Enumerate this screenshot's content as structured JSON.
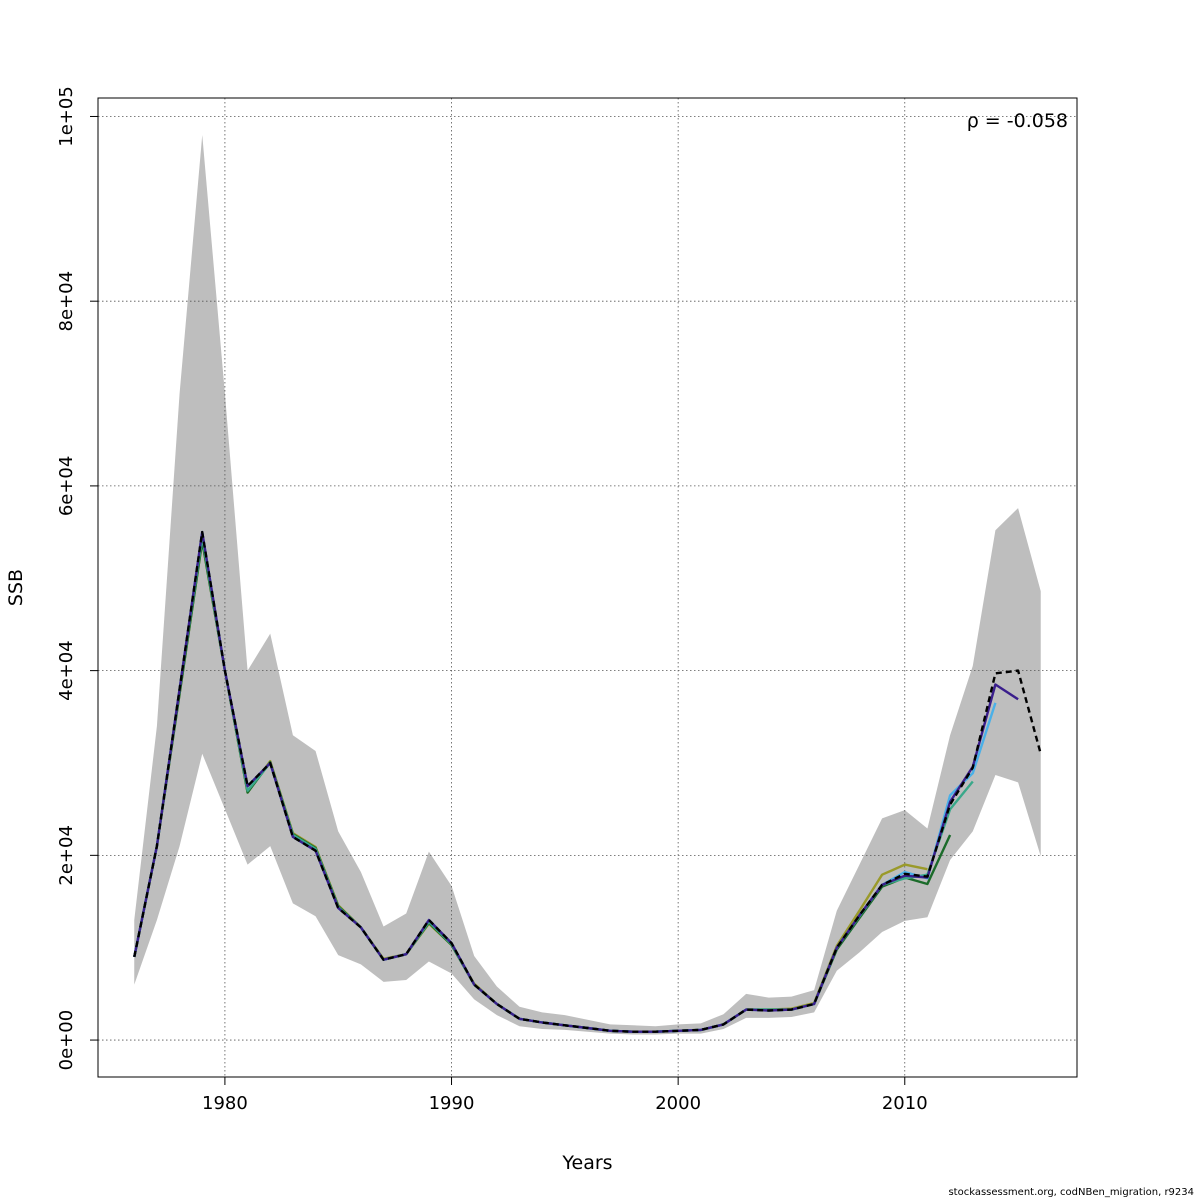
{
  "chart_data": {
    "type": "line",
    "title": "",
    "xlabel": "Years",
    "ylabel": "SSB",
    "xlim": [
      1974.4,
      2017.6
    ],
    "ylim": [
      -4000,
      102000
    ],
    "x_ticks": [
      1980,
      1990,
      2000,
      2010
    ],
    "x_tick_labels": [
      "1980",
      "1990",
      "2000",
      "2010"
    ],
    "y_ticks": [
      0,
      20000,
      40000,
      60000,
      80000,
      100000
    ],
    "y_tick_labels": [
      "0e+00",
      "2e+04",
      "4e+04",
      "6e+04",
      "8e+04",
      "1e+05"
    ],
    "grid": true,
    "annotation": "ρ = -0.058",
    "annotation_position": "top-right",
    "confidence_band": {
      "x": [
        1976,
        1977,
        1978,
        1979,
        1980,
        1981,
        1982,
        1983,
        1984,
        1985,
        1986,
        1987,
        1988,
        1989,
        1990,
        1991,
        1992,
        1993,
        1994,
        1995,
        1996,
        1997,
        1998,
        1999,
        2000,
        2001,
        2002,
        2003,
        2004,
        2005,
        2006,
        2007,
        2008,
        2009,
        2010,
        2011,
        2012,
        2013,
        2014,
        2015,
        2016
      ],
      "lower": [
        6000,
        13000,
        21000,
        31000,
        25000,
        19000,
        21000,
        14800,
        13400,
        9200,
        8200,
        6300,
        6500,
        8500,
        7200,
        4400,
        2700,
        1500,
        1200,
        1100,
        900,
        700,
        600,
        600,
        700,
        700,
        1200,
        2400,
        2400,
        2500,
        3000,
        7500,
        9500,
        11700,
        12900,
        13300,
        19500,
        22600,
        28700,
        27900,
        19900
      ],
      "upper": [
        13000,
        34000,
        70000,
        98000,
        70000,
        40000,
        44000,
        33000,
        31300,
        22600,
        18200,
        12300,
        13700,
        20400,
        16700,
        9100,
        5800,
        3600,
        3000,
        2700,
        2200,
        1700,
        1600,
        1500,
        1700,
        1800,
        2800,
        5000,
        4600,
        4700,
        5400,
        14000,
        19000,
        24000,
        24900,
        22900,
        33000,
        40500,
        55200,
        57600,
        48600
      ]
    },
    "series": [
      {
        "color": "#000000",
        "dashed": true,
        "x": [
          1976,
          1977,
          1978,
          1979,
          1980,
          1981,
          1982,
          1983,
          1984,
          1985,
          1986,
          1987,
          1988,
          1989,
          1990,
          1991,
          1992,
          1993,
          1994,
          1995,
          1996,
          1997,
          1998,
          1999,
          2000,
          2001,
          2002,
          2003,
          2004,
          2005,
          2006,
          2007,
          2008,
          2009,
          2010,
          2011,
          2012,
          2013,
          2014,
          2015,
          2016
        ],
        "y": [
          9000,
          21000,
          38000,
          55000,
          40000,
          27500,
          30000,
          22000,
          20500,
          14300,
          12200,
          8700,
          9300,
          13000,
          10500,
          6000,
          3900,
          2300,
          1900,
          1600,
          1300,
          1000,
          900,
          900,
          1000,
          1100,
          1700,
          3300,
          3200,
          3300,
          3900,
          10000,
          13500,
          16800,
          18000,
          17700,
          25500,
          29500,
          39700,
          40000,
          31000
        ]
      },
      {
        "color": "#3a1e8c",
        "dashed": false,
        "x": [
          1976,
          1977,
          1978,
          1979,
          1980,
          1981,
          1982,
          1983,
          1984,
          1985,
          1986,
          1987,
          1988,
          1989,
          1990,
          1991,
          1992,
          1993,
          1994,
          1995,
          1996,
          1997,
          1998,
          1999,
          2000,
          2001,
          2002,
          2003,
          2004,
          2005,
          2006,
          2007,
          2008,
          2009,
          2010,
          2011,
          2012,
          2013,
          2014,
          2015
        ],
        "y": [
          9000,
          21000,
          38000,
          55000,
          40000,
          27500,
          30000,
          22000,
          20500,
          14300,
          12200,
          8700,
          9300,
          13000,
          10500,
          6000,
          3900,
          2300,
          1900,
          1600,
          1300,
          1000,
          900,
          900,
          1000,
          1100,
          1700,
          3300,
          3200,
          3300,
          3900,
          10000,
          13500,
          16800,
          17800,
          17600,
          25800,
          29600,
          38500,
          36900
        ]
      },
      {
        "color": "#4ab0e8",
        "dashed": false,
        "x": [
          1976,
          1977,
          1978,
          1979,
          1980,
          1981,
          1982,
          1983,
          1984,
          1985,
          1986,
          1987,
          1988,
          1989,
          1990,
          1991,
          1992,
          1993,
          1994,
          1995,
          1996,
          1997,
          1998,
          1999,
          2000,
          2001,
          2002,
          2003,
          2004,
          2005,
          2006,
          2007,
          2008,
          2009,
          2010,
          2011,
          2012,
          2013,
          2014
        ],
        "y": [
          9000,
          21000,
          38000,
          55000,
          40000,
          27500,
          30000,
          22000,
          20500,
          14300,
          12200,
          8700,
          9300,
          13000,
          10500,
          6000,
          3900,
          2300,
          1900,
          1600,
          1300,
          1000,
          900,
          900,
          1000,
          1100,
          1700,
          3300,
          3200,
          3300,
          3900,
          10000,
          13500,
          16800,
          18200,
          17500,
          26500,
          28900,
          36500
        ]
      },
      {
        "color": "#3aa88a",
        "dashed": false,
        "x": [
          1976,
          1977,
          1978,
          1979,
          1980,
          1981,
          1982,
          1983,
          1984,
          1985,
          1986,
          1987,
          1988,
          1989,
          1990,
          1991,
          1992,
          1993,
          1994,
          1995,
          1996,
          1997,
          1998,
          1999,
          2000,
          2001,
          2002,
          2003,
          2004,
          2005,
          2006,
          2007,
          2008,
          2009,
          2010,
          2011,
          2012,
          2013
        ],
        "y": [
          9000,
          21000,
          38000,
          54500,
          40000,
          27000,
          30000,
          22200,
          20700,
          14400,
          12200,
          8700,
          9300,
          12800,
          10400,
          6000,
          3900,
          2300,
          1900,
          1600,
          1300,
          1000,
          900,
          900,
          1000,
          1100,
          1700,
          3300,
          3300,
          3300,
          3900,
          10000,
          13400,
          16800,
          17500,
          17900,
          25000,
          28000
        ]
      },
      {
        "color": "#1b6b2a",
        "dashed": false,
        "x": [
          1976,
          1977,
          1978,
          1979,
          1980,
          1981,
          1982,
          1983,
          1984,
          1985,
          1986,
          1987,
          1988,
          1989,
          1990,
          1991,
          1992,
          1993,
          1994,
          1995,
          1996,
          1997,
          1998,
          1999,
          2000,
          2001,
          2002,
          2003,
          2004,
          2005,
          2006,
          2007,
          2008,
          2009,
          2010,
          2011,
          2012
        ],
        "y": [
          9000,
          21000,
          37500,
          54000,
          40000,
          26800,
          30100,
          22300,
          20800,
          14500,
          12200,
          8700,
          9300,
          12700,
          10300,
          6000,
          3900,
          2300,
          1900,
          1600,
          1300,
          1000,
          900,
          900,
          1000,
          1100,
          1700,
          3300,
          3300,
          3300,
          3900,
          9800,
          13200,
          16600,
          17600,
          16900,
          22200
        ]
      },
      {
        "color": "#9a9a2a",
        "dashed": false,
        "x": [
          1976,
          1977,
          1978,
          1979,
          1980,
          1981,
          1982,
          1983,
          1984,
          1985,
          1986,
          1987,
          1988,
          1989,
          1990,
          1991,
          1992,
          1993,
          1994,
          1995,
          1996,
          1997,
          1998,
          1999,
          2000,
          2001,
          2002,
          2003,
          2004,
          2005,
          2006,
          2007,
          2008,
          2009,
          2010,
          2011
        ],
        "y": [
          9000,
          21000,
          37500,
          54000,
          40000,
          26800,
          30200,
          22400,
          20900,
          14600,
          12200,
          8800,
          9300,
          12600,
          10300,
          6100,
          3900,
          2300,
          1900,
          1600,
          1300,
          1000,
          900,
          900,
          1000,
          1100,
          1700,
          3300,
          3300,
          3400,
          4000,
          10200,
          14000,
          17900,
          19000,
          18500
        ]
      }
    ]
  },
  "footer": {
    "note": "stockassessment.org, codNBen_migration, r9234"
  }
}
